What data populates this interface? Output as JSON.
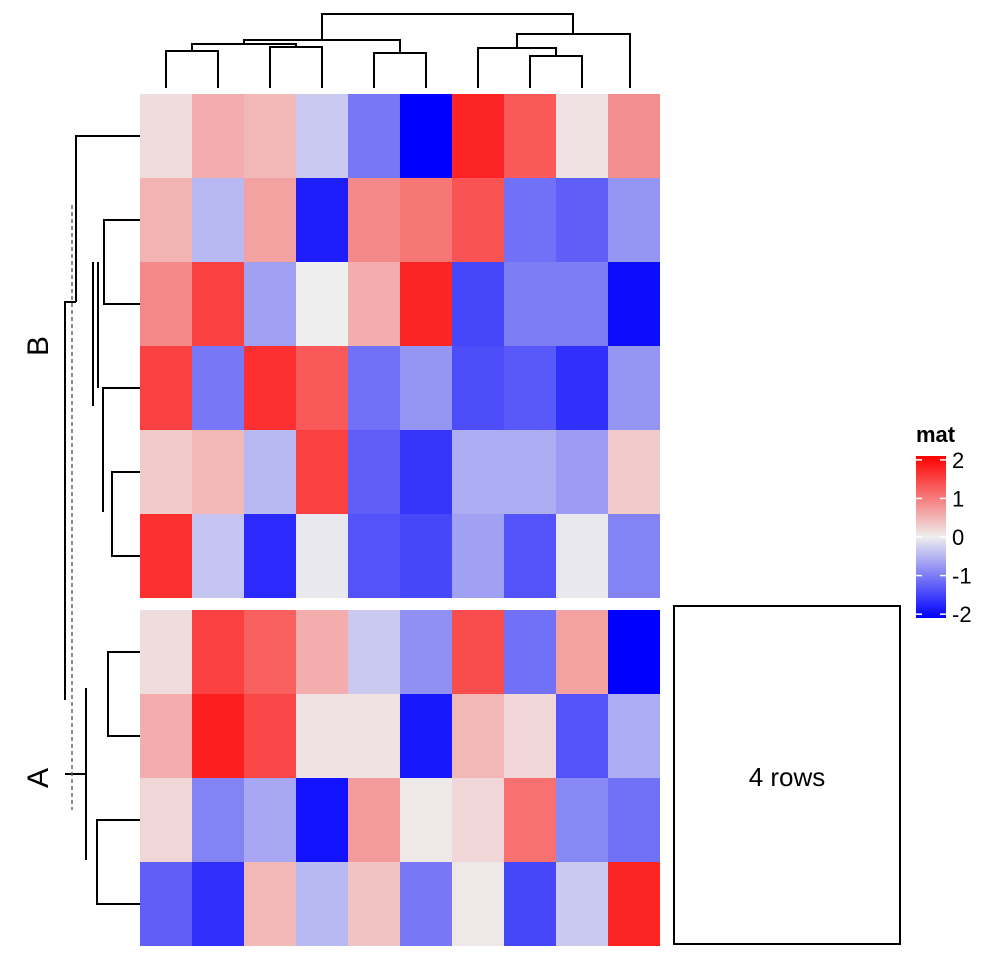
{
  "chart_data": {
    "type": "heatmap",
    "legend": {
      "title": "mat",
      "ticks": [
        2,
        1,
        0,
        -1,
        -2
      ],
      "tick_labels": [
        "2",
        "1",
        "0",
        "-1",
        "-2"
      ],
      "range": [
        -2.1,
        2.1
      ],
      "colors": {
        "high": "#ff0000",
        "mid": "#eeeeee",
        "low": "#0000ff"
      },
      "placement": "right"
    },
    "row_slices": [
      {
        "label": "B",
        "values": [
          [
            0.15,
            0.55,
            0.45,
            -0.3,
            -1.0,
            -2.0,
            1.7,
            1.25,
            0.1,
            0.8
          ],
          [
            0.5,
            -0.45,
            0.65,
            -1.75,
            0.85,
            1.0,
            1.3,
            -1.05,
            -1.2,
            -0.75
          ],
          [
            0.85,
            1.45,
            -0.65,
            0.0,
            0.55,
            1.7,
            -1.4,
            -0.95,
            -0.95,
            -1.9
          ],
          [
            1.45,
            -1.0,
            1.6,
            1.25,
            -1.05,
            -0.75,
            -1.35,
            -1.25,
            -1.6,
            -0.75
          ],
          [
            0.3,
            0.45,
            -0.45,
            1.45,
            -1.2,
            -1.55,
            -0.55,
            -0.55,
            -0.7,
            0.3
          ],
          [
            1.6,
            -0.35,
            -1.65,
            -0.05,
            -1.3,
            -1.4,
            -0.65,
            -1.3,
            -0.05,
            -0.9
          ]
        ]
      },
      {
        "label": "A",
        "values": [
          [
            0.15,
            1.45,
            1.2,
            0.55,
            -0.3,
            -0.8,
            1.35,
            -1.05,
            0.65,
            -2.0
          ],
          [
            0.55,
            1.75,
            1.4,
            0.1,
            0.1,
            -1.8,
            0.45,
            0.2,
            -1.3,
            -0.55
          ],
          [
            0.2,
            -0.9,
            -0.6,
            -1.85,
            0.7,
            0.05,
            0.2,
            1.05,
            -0.85,
            -1.05
          ],
          [
            -1.2,
            -1.6,
            0.45,
            -0.45,
            0.35,
            -1.0,
            0.05,
            -1.4,
            -0.3,
            1.7
          ]
        ]
      }
    ],
    "annotation": {
      "text": "4 rows"
    },
    "column_dendrogram": true,
    "row_dendrogram": true
  }
}
